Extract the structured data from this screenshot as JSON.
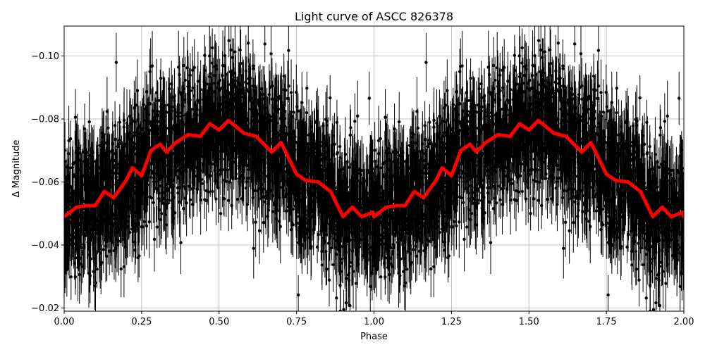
{
  "chart_data": {
    "type": "scatter",
    "title": "Light curve of ASCC 826378",
    "xlabel": "Phase",
    "ylabel": "Δ Magnitude",
    "xlim": [
      0.0,
      2.0
    ],
    "ylim": [
      -0.019,
      -0.1095
    ],
    "y_inverted": true,
    "grid": true,
    "x_ticks": [
      "0.00",
      "0.25",
      "0.50",
      "0.75",
      "1.00",
      "1.25",
      "1.50",
      "1.75",
      "2.00"
    ],
    "x_tick_values": [
      0,
      0.25,
      0.5,
      0.75,
      1.0,
      1.25,
      1.5,
      1.75,
      2.0
    ],
    "y_ticks": [
      "−0.02",
      "−0.04",
      "−0.06",
      "−0.08",
      "−0.10"
    ],
    "y_tick_values": [
      -0.02,
      -0.04,
      -0.06,
      -0.08,
      -0.1
    ],
    "observations_color": "#000000",
    "model_color": "#ff0000",
    "series": [
      {
        "role": "model",
        "x": [
          0.0,
          0.04,
          0.07,
          0.1,
          0.13,
          0.16,
          0.2,
          0.22,
          0.25,
          0.28,
          0.31,
          0.33,
          0.36,
          0.4,
          0.44,
          0.47,
          0.5,
          0.53,
          0.55,
          0.58,
          0.62,
          0.65,
          0.67,
          0.7,
          0.72,
          0.75,
          0.78,
          0.82,
          0.86,
          0.9,
          0.93,
          0.96,
          1.0
        ],
        "y": [
          -0.049,
          -0.052,
          -0.0525,
          -0.0525,
          -0.057,
          -0.055,
          -0.0605,
          -0.0645,
          -0.062,
          -0.07,
          -0.072,
          -0.0695,
          -0.0725,
          -0.075,
          -0.0745,
          -0.0785,
          -0.0765,
          -0.0795,
          -0.078,
          -0.0755,
          -0.0745,
          -0.0715,
          -0.0695,
          -0.0725,
          -0.0685,
          -0.0625,
          -0.0605,
          -0.06,
          -0.057,
          -0.049,
          -0.052,
          -0.049,
          -0.0505
        ]
      }
    ]
  }
}
